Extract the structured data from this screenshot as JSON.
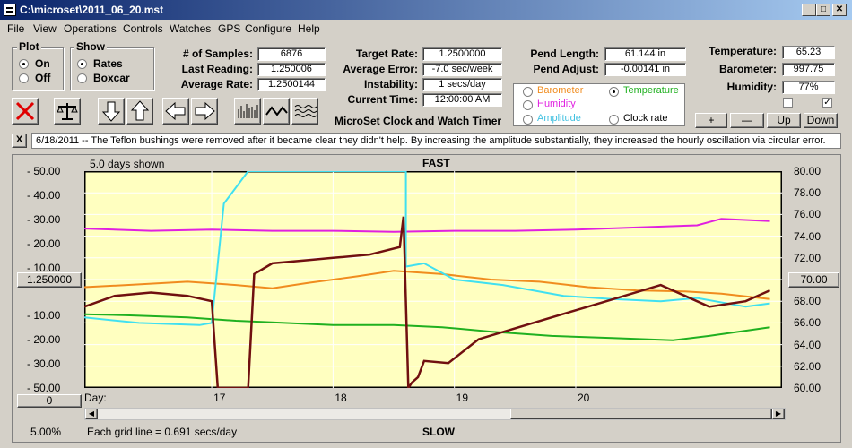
{
  "window": {
    "title": "C:\\microset\\2011_06_20.mst",
    "min": "_",
    "max": "□",
    "close": "✕"
  },
  "menu": [
    "File",
    "View",
    "Operations",
    "Controls",
    "Watches",
    "GPS",
    "Configure",
    "Help"
  ],
  "plot_group": {
    "label": "Plot",
    "on": "On",
    "off": "Off",
    "selected": "On"
  },
  "show_group": {
    "label": "Show",
    "rates": "Rates",
    "boxcar": "Boxcar",
    "selected": "Rates"
  },
  "stats": {
    "samples_label": "# of Samples:",
    "samples": "6876",
    "last_label": "Last Reading:",
    "last": "1.250006",
    "avg_rate_label": "Average Rate:",
    "avg_rate": "1.2500144"
  },
  "rates": {
    "target_label": "Target Rate:",
    "target": "1.2500000",
    "avg_err_label": "Average Error:",
    "avg_err": "-7.0 sec/week",
    "instab_label": "Instability:",
    "instab": "1 secs/day",
    "time_label": "Current Time:",
    "time": "12:00:00 AM"
  },
  "pend": {
    "length_label": "Pend Length:",
    "length": "61.144 in",
    "adjust_label": "Pend Adjust:",
    "adjust": "-0.00141 in"
  },
  "env": {
    "temp_label": "Temperature:",
    "temp": "65.23",
    "baro_label": "Barometer:",
    "baro": "997.75",
    "hum_label": "Humidity:",
    "hum": "77%"
  },
  "series_select": {
    "barometer": "Barometer",
    "temperature": "Temperature",
    "humidity": "Humidity",
    "amplitude": "Amplitude",
    "clock_rate": "Clock rate",
    "selected": "Temperature"
  },
  "scale_buttons": {
    "plus": "+",
    "minus": "—",
    "up": "Up",
    "down": "Down"
  },
  "app_name": "MicroSet Clock and Watch Timer",
  "note": "6/18/2011 -- The Teflon bushings were removed after it became clear they didn't help. By increasing the amplitude substantially, they increased the hourly oscillation via circular error.",
  "note_close": "X",
  "chart_labels": {
    "days_shown": "5.0 days shown",
    "fast": "FAST",
    "slow": "SLOW",
    "day": "Day:",
    "center_left": "1.250000",
    "center_right": "70.00",
    "zero_btn": "0",
    "pct": "5.00%",
    "grid_info": "Each grid line = 0.691 secs/day"
  },
  "colors": {
    "bg": "#ffffc0",
    "humidity": "#e020e0",
    "barometer": "#f08c1e",
    "temperature": "#20b020",
    "amplitude": "#40e0f0",
    "clock_rate": "#701010"
  },
  "chart_data": {
    "type": "line",
    "x_ticks": [
      {
        "day": "17",
        "x": 17
      },
      {
        "day": "18",
        "x": 18
      },
      {
        "day": "19",
        "x": 19
      },
      {
        "day": "20",
        "x": 20
      }
    ],
    "xlim": [
      15.95,
      21.7
    ],
    "y_left_ticks": [
      "50.00",
      "40.00",
      "30.00",
      "20.00",
      "10.00",
      "",
      "10.00",
      "20.00",
      "30.00",
      "50.00"
    ],
    "y_left_signs": [
      "-",
      "-",
      "-",
      "-",
      "-",
      "",
      "-",
      "-",
      "-",
      "-"
    ],
    "y_right_ticks": [
      "80.00",
      "78.00",
      "76.00",
      "74.00",
      "72.00",
      "70.00",
      "68.00",
      "66.00",
      "64.00",
      "62.00",
      "60.00"
    ],
    "ylim_right": [
      60,
      80
    ],
    "series": [
      {
        "name": "Humidity",
        "color": "#e020e0",
        "x": [
          15.95,
          16.5,
          17,
          17.5,
          18,
          18.5,
          19,
          19.5,
          20,
          20.5,
          21,
          21.2,
          21.6
        ],
        "y": [
          74.7,
          74.5,
          74.6,
          74.5,
          74.5,
          74.4,
          74.5,
          74.5,
          74.6,
          74.8,
          75.0,
          75.6,
          75.4
        ]
      },
      {
        "name": "Barometer",
        "color": "#f08c1e",
        "x": [
          15.95,
          16.3,
          16.8,
          17.2,
          17.5,
          17.8,
          18.2,
          18.5,
          18.9,
          19.3,
          19.7,
          20.1,
          20.5,
          20.9,
          21.2,
          21.6
        ],
        "y": [
          69.3,
          69.5,
          69.8,
          69.5,
          69.2,
          69.7,
          70.3,
          70.8,
          70.5,
          70.0,
          69.8,
          69.3,
          69.0,
          68.9,
          68.7,
          68.2
        ]
      },
      {
        "name": "Temperature",
        "color": "#20b020",
        "x": [
          15.95,
          16.3,
          16.8,
          17.2,
          17.6,
          18.0,
          18.5,
          18.9,
          19.3,
          19.8,
          20.3,
          20.8,
          21.1,
          21.6
        ],
        "y": [
          66.8,
          66.7,
          66.5,
          66.2,
          66.0,
          65.8,
          65.8,
          65.6,
          65.2,
          64.8,
          64.6,
          64.4,
          64.8,
          65.6
        ]
      },
      {
        "name": "Amplitude",
        "color": "#40e0f0",
        "x": [
          15.95,
          16.4,
          16.9,
          17.0,
          17.1,
          17.3,
          17.9,
          18.3,
          18.6,
          18.6,
          18.75,
          19.0,
          19.4,
          19.9,
          20.3,
          20.7,
          21.0,
          21.4,
          21.6
        ],
        "y": [
          66.5,
          66.0,
          65.8,
          66.0,
          77.0,
          80.0,
          80.0,
          80.0,
          80.0,
          71.2,
          71.5,
          70.0,
          69.5,
          68.5,
          68.2,
          68.0,
          68.3,
          67.5,
          67.8
        ]
      },
      {
        "name": "Clock rate",
        "color": "#701010",
        "x": [
          15.95,
          16.2,
          16.5,
          16.8,
          17.0,
          17.05,
          17.3,
          17.35,
          17.5,
          17.8,
          18.0,
          18.3,
          18.55,
          18.58,
          18.62,
          18.65,
          18.7,
          18.75,
          18.95,
          19.2,
          19.5,
          19.8,
          20.1,
          20.4,
          20.7,
          20.9,
          21.1,
          21.4,
          21.6
        ],
        "y": [
          67.5,
          68.5,
          68.8,
          68.5,
          68.0,
          60.0,
          60.0,
          70.5,
          71.5,
          71.8,
          72.0,
          72.3,
          73.0,
          75.8,
          60.0,
          60.5,
          61.0,
          62.5,
          62.3,
          64.5,
          65.5,
          66.5,
          67.5,
          68.5,
          69.5,
          68.5,
          67.5,
          68.0,
          69.0
        ]
      }
    ]
  }
}
